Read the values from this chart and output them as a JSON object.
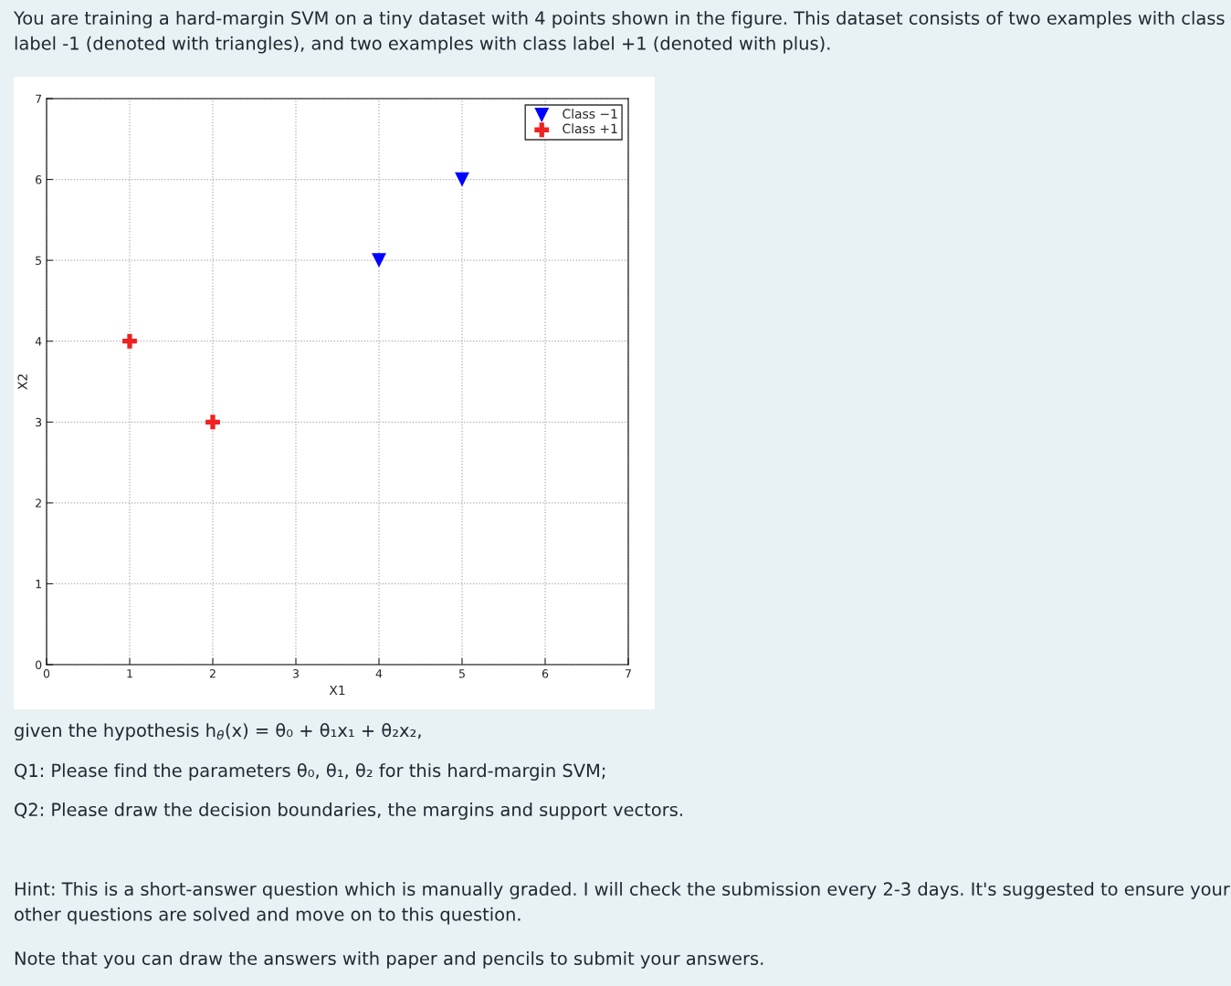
{
  "chart_data": {
    "type": "scatter",
    "xlabel": "X1",
    "ylabel": "X2",
    "xlim": [
      0,
      7
    ],
    "ylim": [
      0,
      7
    ],
    "xticks": [
      0,
      1,
      2,
      3,
      4,
      5,
      6,
      7
    ],
    "yticks": [
      0,
      1,
      2,
      3,
      4,
      5,
      6,
      7
    ],
    "grid": true,
    "legend": "top right",
    "series": [
      {
        "name": "Class −1",
        "color": "#0000ff",
        "marker": "triangle",
        "x": [
          4,
          5
        ],
        "values": [
          5,
          6
        ]
      },
      {
        "name": "Class +1",
        "color": "#ee2222",
        "marker": "cross",
        "x": [
          1,
          2
        ],
        "values": [
          4,
          3
        ]
      }
    ],
    "annotations": [
      "You are training a hard-margin SVM on a tiny dataset with 4 points shown in the figure. This dataset consists of two examples with class label -1 (denoted with triangles), and two examples with class label +1 (denoted with plus).",
      "given the hypothesis h$_{θ}$(x) = θ₀ + θ₁x₁ + θ₂x₂,",
      "Q1: Please find the parameters θ₀, θ₁, θ₂ for this hard-margin SVM;",
      "Q2: Please draw the decision boundaries, the margins and support vectors.",
      "Hint: This is a short-answer question which is manually graded. I will check the submission every 2-3 days. It's suggested to ensure your other questions are solved and move on to this question.",
      "Note that you can draw the answers with paper and pencils to submit your answers."
    ]
  }
}
